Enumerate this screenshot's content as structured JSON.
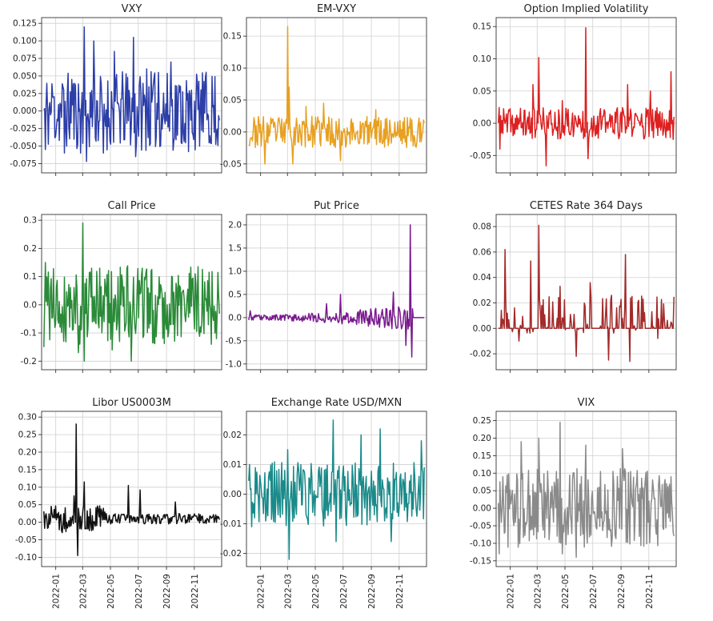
{
  "figure": {
    "x_dates": [
      "2022-01",
      "2022-03",
      "2022-05",
      "2022-07",
      "2022-09",
      "2022-11"
    ]
  },
  "chart_data": [
    {
      "type": "line",
      "title": "VXY",
      "color": "#2c3ea8",
      "ylim": [
        -0.08,
        0.125
      ],
      "yticks": [
        -0.075,
        -0.05,
        -0.025,
        0.0,
        0.025,
        0.05,
        0.075,
        0.1,
        0.125
      ],
      "ytick_labels": [
        "-0.075",
        "-0.050",
        "-0.025",
        "0.000",
        "0.025",
        "0.050",
        "0.075",
        "0.100",
        "0.125"
      ],
      "x_range": [
        "2021-12-01",
        "2022-12-31"
      ],
      "seed": 11,
      "style": "volatile",
      "anchors": [
        {
          "x": "2021-12-10",
          "y": -0.055
        },
        {
          "x": "2021-12-25",
          "y": 0.02
        },
        {
          "x": "2022-01-20",
          "y": -0.06
        },
        {
          "x": "2022-02-05",
          "y": 0.045
        },
        {
          "x": "2022-02-25",
          "y": -0.06
        },
        {
          "x": "2022-03-05",
          "y": 0.12
        },
        {
          "x": "2022-03-10",
          "y": -0.072
        },
        {
          "x": "2022-03-25",
          "y": 0.1
        },
        {
          "x": "2022-04-15",
          "y": -0.06
        },
        {
          "x": "2022-05-10",
          "y": 0.085
        },
        {
          "x": "2022-06-20",
          "y": 0.105
        },
        {
          "x": "2022-06-25",
          "y": -0.065
        },
        {
          "x": "2022-07-20",
          "y": 0.06
        },
        {
          "x": "2022-08-15",
          "y": 0.055
        },
        {
          "x": "2022-09-10",
          "y": 0.07
        },
        {
          "x": "2022-10-20",
          "y": -0.058
        },
        {
          "x": "2022-11-20",
          "y": -0.03
        },
        {
          "x": "2022-12-20",
          "y": -0.03
        }
      ]
    },
    {
      "type": "line",
      "title": "EM-VXY",
      "color": "#e8a020",
      "ylim": [
        -0.055,
        0.17
      ],
      "yticks": [
        -0.05,
        0.0,
        0.05,
        0.1,
        0.15
      ],
      "ytick_labels": [
        "-0.05",
        "0.00",
        "0.05",
        "0.10",
        "0.15"
      ],
      "x_range": [
        "2021-12-01",
        "2022-12-31"
      ],
      "seed": 23,
      "style": "calm",
      "anchors": [
        {
          "x": "2021-12-10",
          "y": -0.01
        },
        {
          "x": "2022-01-10",
          "y": -0.05
        },
        {
          "x": "2022-03-01",
          "y": 0.165
        },
        {
          "x": "2022-03-05",
          "y": 0.07
        },
        {
          "x": "2022-03-12",
          "y": -0.05
        },
        {
          "x": "2022-04-10",
          "y": 0.04
        },
        {
          "x": "2022-05-20",
          "y": 0.045
        },
        {
          "x": "2022-06-25",
          "y": -0.045
        },
        {
          "x": "2022-09-10",
          "y": 0.035
        },
        {
          "x": "2022-12-20",
          "y": -0.015
        }
      ]
    },
    {
      "type": "line",
      "title": "Option Implied Volatility",
      "color": "#dd2020",
      "ylim": [
        -0.068,
        0.155
      ],
      "yticks": [
        -0.05,
        0.0,
        0.05,
        0.1,
        0.15
      ],
      "ytick_labels": [
        "-0.05",
        "0.00",
        "0.05",
        "0.10",
        "0.15"
      ],
      "x_range": [
        "2021-12-01",
        "2022-12-31"
      ],
      "seed": 37,
      "style": "calm",
      "anchors": [
        {
          "x": "2021-12-10",
          "y": -0.04
        },
        {
          "x": "2022-02-20",
          "y": 0.06
        },
        {
          "x": "2022-03-05",
          "y": 0.102
        },
        {
          "x": "2022-03-20",
          "y": -0.066
        },
        {
          "x": "2022-04-25",
          "y": 0.035
        },
        {
          "x": "2022-06-15",
          "y": 0.148
        },
        {
          "x": "2022-06-20",
          "y": -0.055
        },
        {
          "x": "2022-09-15",
          "y": 0.06
        },
        {
          "x": "2022-11-05",
          "y": 0.05
        },
        {
          "x": "2022-12-20",
          "y": 0.08
        },
        {
          "x": "2022-12-25",
          "y": -0.025
        }
      ]
    },
    {
      "type": "line",
      "title": "Call Price",
      "color": "#2a8a38",
      "ylim": [
        -0.21,
        0.3
      ],
      "yticks": [
        -0.2,
        -0.1,
        0.0,
        0.1,
        0.2,
        0.3
      ],
      "ytick_labels": [
        "-0.2",
        "-0.1",
        "0.0",
        "0.1",
        "0.2",
        "0.3"
      ],
      "x_range": [
        "2021-12-01",
        "2022-12-31"
      ],
      "seed": 41,
      "style": "volatile",
      "anchors": [
        {
          "x": "2021-12-05",
          "y": -0.15
        },
        {
          "x": "2021-12-10",
          "y": 0.15
        },
        {
          "x": "2022-02-20",
          "y": -0.17
        },
        {
          "x": "2022-03-01",
          "y": 0.29
        },
        {
          "x": "2022-03-05",
          "y": -0.2
        },
        {
          "x": "2022-05-05",
          "y": -0.16
        },
        {
          "x": "2022-06-15",
          "y": -0.2
        },
        {
          "x": "2022-07-10",
          "y": 0.13
        },
        {
          "x": "2022-12-20",
          "y": -0.12
        }
      ]
    },
    {
      "type": "line",
      "title": "Put Price",
      "color": "#7a1a8e",
      "ylim": [
        -1.0,
        2.1
      ],
      "yticks": [
        -1.0,
        -0.5,
        0.0,
        0.5,
        1.0,
        1.5,
        2.0
      ],
      "ytick_labels": [
        "-1.0",
        "-0.5",
        "0.0",
        "0.5",
        "1.0",
        "1.5",
        "2.0"
      ],
      "x_range": [
        "2021-12-01",
        "2022-12-31"
      ],
      "seed": 53,
      "style": "put",
      "anchors": [
        {
          "x": "2021-12-10",
          "y": 0.15
        },
        {
          "x": "2022-05-25",
          "y": 0.3
        },
        {
          "x": "2022-06-25",
          "y": 0.5
        },
        {
          "x": "2022-10-20",
          "y": 0.55
        },
        {
          "x": "2022-11-15",
          "y": -0.6
        },
        {
          "x": "2022-11-25",
          "y": 2.0
        },
        {
          "x": "2022-11-28",
          "y": -0.85
        },
        {
          "x": "2022-12-25",
          "y": 0.0
        }
      ]
    },
    {
      "type": "line",
      "title": "CETES Rate 364 Days",
      "color": "#a32a2a",
      "ylim": [
        -0.028,
        0.085
      ],
      "yticks": [
        -0.02,
        0.0,
        0.02,
        0.04,
        0.06,
        0.08
      ],
      "ytick_labels": [
        "-0.02",
        "0.00",
        "0.02",
        "0.04",
        "0.06",
        "0.08"
      ],
      "x_range": [
        "2021-12-01",
        "2022-12-31"
      ],
      "seed": 67,
      "style": "spiky",
      "anchors": [
        {
          "x": "2021-12-20",
          "y": 0.062
        },
        {
          "x": "2022-01-20",
          "y": -0.01
        },
        {
          "x": "2022-02-15",
          "y": 0.053
        },
        {
          "x": "2022-03-05",
          "y": 0.081
        },
        {
          "x": "2022-04-20",
          "y": 0.033
        },
        {
          "x": "2022-05-25",
          "y": -0.022
        },
        {
          "x": "2022-06-25",
          "y": 0.036
        },
        {
          "x": "2022-08-05",
          "y": -0.025
        },
        {
          "x": "2022-09-10",
          "y": 0.058
        },
        {
          "x": "2022-09-20",
          "y": -0.026
        },
        {
          "x": "2022-10-10",
          "y": 0.022
        },
        {
          "x": "2022-11-20",
          "y": -0.008
        },
        {
          "x": "2022-12-20",
          "y": 0.005
        }
      ]
    },
    {
      "type": "line",
      "title": "Libor US0003M",
      "color": "#111111",
      "ylim": [
        -0.11,
        0.3
      ],
      "yticks": [
        -0.1,
        -0.05,
        0.0,
        0.05,
        0.1,
        0.15,
        0.2,
        0.25,
        0.3
      ],
      "ytick_labels": [
        "-0.10",
        "-0.05",
        "0.00",
        "0.05",
        "0.10",
        "0.15",
        "0.20",
        "0.25",
        "0.30"
      ],
      "x_range": [
        "2021-12-01",
        "2022-12-31"
      ],
      "seed": 71,
      "style": "libor",
      "anchors": [
        {
          "x": "2022-02-10",
          "y": 0.075
        },
        {
          "x": "2022-02-15",
          "y": 0.28
        },
        {
          "x": "2022-02-18",
          "y": -0.095
        },
        {
          "x": "2022-03-05",
          "y": 0.115
        },
        {
          "x": "2022-04-15",
          "y": 0.04
        },
        {
          "x": "2022-06-10",
          "y": 0.105
        },
        {
          "x": "2022-07-05",
          "y": 0.092
        },
        {
          "x": "2022-09-20",
          "y": 0.058
        },
        {
          "x": "2022-12-20",
          "y": 0.0
        }
      ]
    },
    {
      "type": "line",
      "title": "Exchange Rate USD/MXN",
      "color": "#1a8a8a",
      "ylim": [
        -0.0225,
        0.026
      ],
      "yticks": [
        -0.02,
        -0.01,
        0.0,
        0.01,
        0.02
      ],
      "ytick_labels": [
        "-0.02",
        "-0.01",
        "0.00",
        "0.01",
        "0.02"
      ],
      "x_range": [
        "2021-12-01",
        "2022-12-31"
      ],
      "seed": 83,
      "style": "fx",
      "anchors": [
        {
          "x": "2021-12-08",
          "y": 0.01
        },
        {
          "x": "2021-12-12",
          "y": -0.011
        },
        {
          "x": "2022-03-01",
          "y": 0.015
        },
        {
          "x": "2022-03-05",
          "y": -0.022
        },
        {
          "x": "2022-06-10",
          "y": 0.025
        },
        {
          "x": "2022-06-15",
          "y": -0.016
        },
        {
          "x": "2022-08-10",
          "y": 0.02
        },
        {
          "x": "2022-09-20",
          "y": 0.022
        },
        {
          "x": "2022-10-15",
          "y": -0.016
        },
        {
          "x": "2022-12-20",
          "y": 0.018
        }
      ]
    },
    {
      "type": "line",
      "title": "VIX",
      "color": "#8a8a8a",
      "ylim": [
        -0.15,
        0.26
      ],
      "yticks": [
        -0.15,
        -0.1,
        -0.05,
        0.0,
        0.05,
        0.1,
        0.15,
        0.2,
        0.25
      ],
      "ytick_labels": [
        "-0.15",
        "-0.10",
        "-0.05",
        "0.00",
        "0.05",
        "0.10",
        "0.15",
        "0.20",
        "0.25"
      ],
      "x_range": [
        "2021-12-01",
        "2022-12-31"
      ],
      "seed": 97,
      "style": "volatile",
      "anchors": [
        {
          "x": "2021-12-08",
          "y": -0.13
        },
        {
          "x": "2021-12-15",
          "y": 0.09
        },
        {
          "x": "2022-01-25",
          "y": 0.19
        },
        {
          "x": "2022-03-05",
          "y": 0.2
        },
        {
          "x": "2022-04-20",
          "y": 0.245
        },
        {
          "x": "2022-04-25",
          "y": -0.13
        },
        {
          "x": "2022-05-25",
          "y": -0.14
        },
        {
          "x": "2022-06-15",
          "y": 0.18
        },
        {
          "x": "2022-09-05",
          "y": 0.17
        },
        {
          "x": "2022-12-20",
          "y": 0.09
        }
      ]
    }
  ]
}
